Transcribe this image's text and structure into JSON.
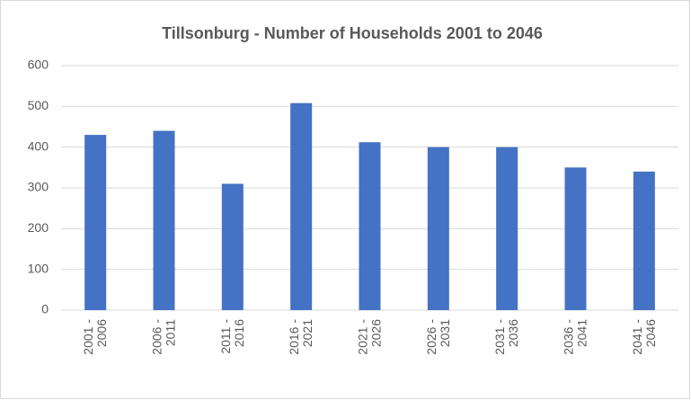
{
  "chart_data": {
    "type": "bar",
    "title": "Tillsonburg - Number of Households 2001 to 2046",
    "categories": [
      "2001 - 2006",
      "2006 - 2011",
      "2011 - 2016",
      "2016 - 2021",
      "2021 - 2026",
      "2026 - 2031",
      "2031 - 2036",
      "2036 - 2041",
      "2041 - 2046"
    ],
    "values": [
      430,
      440,
      310,
      508,
      412,
      400,
      400,
      350,
      340
    ],
    "color": "#4472c4",
    "ylim": [
      0,
      600
    ],
    "yticks": [
      0,
      100,
      200,
      300,
      400,
      500,
      600
    ],
    "grid": true
  }
}
